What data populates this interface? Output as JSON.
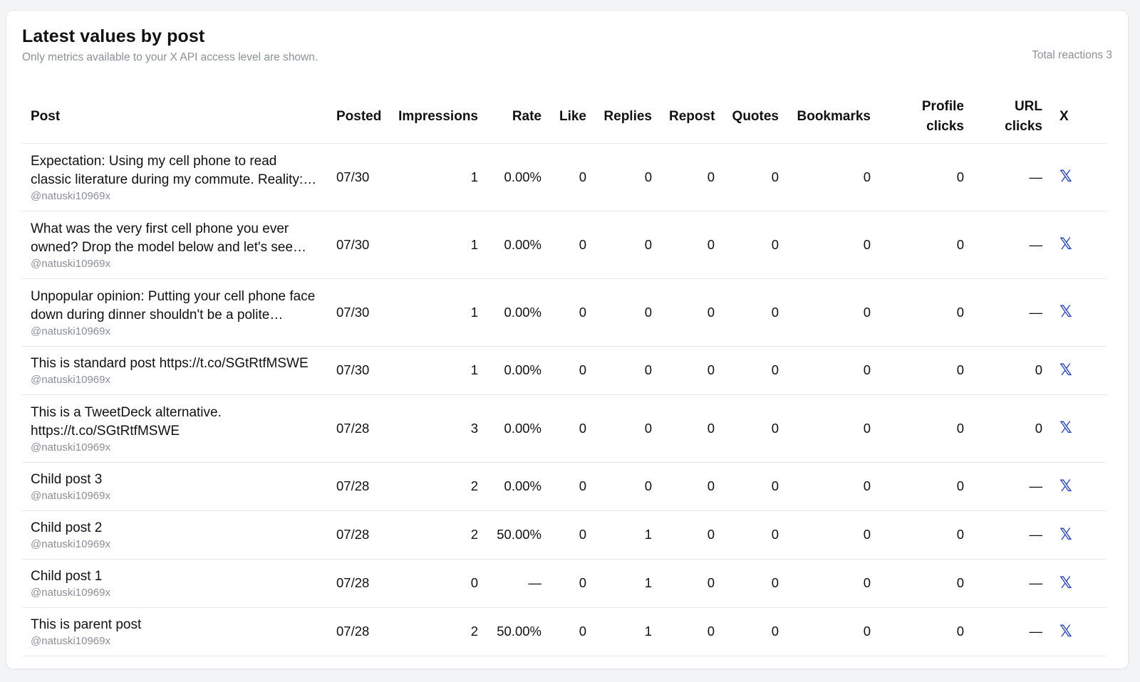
{
  "header": {
    "title": "Latest values by post",
    "subtitle": "Only metrics available to your X API access level are shown.",
    "total": "Total reactions 3"
  },
  "columns": {
    "post": "Post",
    "posted": "Posted",
    "impressions": "Impressions",
    "rate": "Rate",
    "like": "Like",
    "replies": "Replies",
    "repost": "Repost",
    "quotes": "Quotes",
    "bookmarks": "Bookmarks",
    "profile_clicks_1": "Profile",
    "profile_clicks_2": "clicks",
    "url_clicks_1": "URL",
    "url_clicks_2": "clicks",
    "x": "X"
  },
  "x_link_glyph": "𝕏",
  "link_color": "#1d3fd8",
  "rows": [
    {
      "text": "Expectation: Using my cell phone to read classic literature during my commute. Reality: scrolling memes the whole ride.",
      "handle": "@natuski10969x",
      "posted": "07/30",
      "impressions": "1",
      "rate": "0.00%",
      "like": "0",
      "replies": "0",
      "repost": "0",
      "quotes": "0",
      "bookmarks": "0",
      "profile_clicks": "0",
      "url_clicks": "—"
    },
    {
      "text": "What was the very first cell phone you ever owned? Drop the model below and let's see who goes back the furthest.",
      "handle": "@natuski10969x",
      "posted": "07/30",
      "impressions": "1",
      "rate": "0.00%",
      "like": "0",
      "replies": "0",
      "repost": "0",
      "quotes": "0",
      "bookmarks": "0",
      "profile_clicks": "0",
      "url_clicks": "—"
    },
    {
      "text": "Unpopular opinion: Putting your cell phone face down during dinner shouldn't be a polite exception, it should be the rule.",
      "handle": "@natuski10969x",
      "posted": "07/30",
      "impressions": "1",
      "rate": "0.00%",
      "like": "0",
      "replies": "0",
      "repost": "0",
      "quotes": "0",
      "bookmarks": "0",
      "profile_clicks": "0",
      "url_clicks": "—"
    },
    {
      "text": "This is standard post https://t.co/SGtRtfMSWE",
      "handle": "@natuski10969x",
      "posted": "07/30",
      "impressions": "1",
      "rate": "0.00%",
      "like": "0",
      "replies": "0",
      "repost": "0",
      "quotes": "0",
      "bookmarks": "0",
      "profile_clicks": "0",
      "url_clicks": "0"
    },
    {
      "text": "This is a TweetDeck alternative. https://t.co/SGtRtfMSWE",
      "handle": "@natuski10969x",
      "posted": "07/28",
      "impressions": "3",
      "rate": "0.00%",
      "like": "0",
      "replies": "0",
      "repost": "0",
      "quotes": "0",
      "bookmarks": "0",
      "profile_clicks": "0",
      "url_clicks": "0"
    },
    {
      "text": "Child post 3",
      "handle": "@natuski10969x",
      "posted": "07/28",
      "impressions": "2",
      "rate": "0.00%",
      "like": "0",
      "replies": "0",
      "repost": "0",
      "quotes": "0",
      "bookmarks": "0",
      "profile_clicks": "0",
      "url_clicks": "—"
    },
    {
      "text": "Child post 2",
      "handle": "@natuski10969x",
      "posted": "07/28",
      "impressions": "2",
      "rate": "50.00%",
      "like": "0",
      "replies": "1",
      "repost": "0",
      "quotes": "0",
      "bookmarks": "0",
      "profile_clicks": "0",
      "url_clicks": "—"
    },
    {
      "text": "Child post 1",
      "handle": "@natuski10969x",
      "posted": "07/28",
      "impressions": "0",
      "rate": "—",
      "like": "0",
      "replies": "1",
      "repost": "0",
      "quotes": "0",
      "bookmarks": "0",
      "profile_clicks": "0",
      "url_clicks": "—"
    },
    {
      "text": "This is parent post",
      "handle": "@natuski10969x",
      "posted": "07/28",
      "impressions": "2",
      "rate": "50.00%",
      "like": "0",
      "replies": "1",
      "repost": "0",
      "quotes": "0",
      "bookmarks": "0",
      "profile_clicks": "0",
      "url_clicks": "—"
    }
  ]
}
